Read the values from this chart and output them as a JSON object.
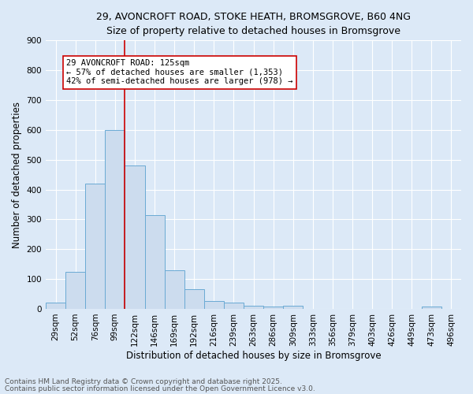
{
  "title_line1": "29, AVONCROFT ROAD, STOKE HEATH, BROMSGROVE, B60 4NG",
  "title_line2": "Size of property relative to detached houses in Bromsgrove",
  "xlabel": "Distribution of detached houses by size in Bromsgrove",
  "ylabel": "Number of detached properties",
  "categories": [
    "29sqm",
    "52sqm",
    "76sqm",
    "99sqm",
    "122sqm",
    "146sqm",
    "169sqm",
    "192sqm",
    "216sqm",
    "239sqm",
    "263sqm",
    "286sqm",
    "309sqm",
    "333sqm",
    "356sqm",
    "379sqm",
    "403sqm",
    "426sqm",
    "449sqm",
    "473sqm",
    "496sqm"
  ],
  "values": [
    20,
    125,
    420,
    600,
    480,
    315,
    130,
    65,
    27,
    22,
    10,
    8,
    10,
    0,
    0,
    0,
    0,
    0,
    0,
    8,
    0
  ],
  "bar_color": "#ccdcee",
  "bar_edge_color": "#6aaad4",
  "red_line_index": 4,
  "annotation_text": "29 AVONCROFT ROAD: 125sqm\n← 57% of detached houses are smaller (1,353)\n42% of semi-detached houses are larger (978) →",
  "annotation_box_color": "white",
  "annotation_box_edge_color": "#cc0000",
  "red_line_color": "#cc0000",
  "ylim": [
    0,
    900
  ],
  "yticks": [
    0,
    100,
    200,
    300,
    400,
    500,
    600,
    700,
    800,
    900
  ],
  "footnote1": "Contains HM Land Registry data © Crown copyright and database right 2025.",
  "footnote2": "Contains public sector information licensed under the Open Government Licence v3.0.",
  "bg_color": "#dce9f7",
  "plot_bg_color": "#dce9f7",
  "grid_color": "white",
  "title1_fontsize": 9,
  "title2_fontsize": 9,
  "axis_label_fontsize": 8.5,
  "tick_fontsize": 7.5,
  "annotation_fontsize": 7.5,
  "footnote_fontsize": 6.5
}
